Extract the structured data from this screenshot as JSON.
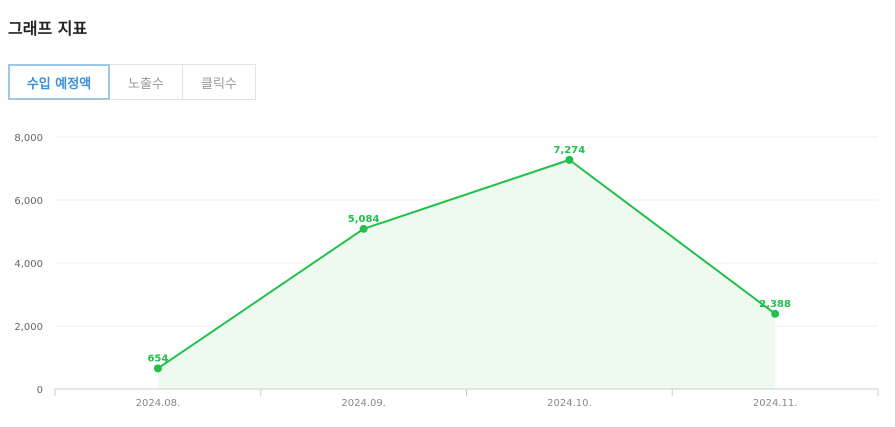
{
  "section": {
    "title": "그래프 지표"
  },
  "tabs": [
    {
      "label": "수입 예정액",
      "active": true
    },
    {
      "label": "노출수",
      "active": false
    },
    {
      "label": "클릭수",
      "active": false
    }
  ],
  "colors": {
    "series_line": "#22c04b",
    "series_fill": "#eefaf0",
    "tab_active_text": "#3a8fd6",
    "tab_active_border": "#9ec7ea"
  },
  "chart_data": {
    "type": "area",
    "title": "",
    "xlabel": "",
    "ylabel": "",
    "categories": [
      "2024.08.",
      "2024.09.",
      "2024.10.",
      "2024.11."
    ],
    "series": [
      {
        "values": [
          654,
          5084,
          7274,
          2388
        ],
        "value_labels": [
          "654",
          "5,084",
          "7,274",
          "2,388"
        ]
      }
    ],
    "ylim": [
      0,
      8000
    ],
    "y_ticks": [
      0,
      2000,
      4000,
      6000,
      8000
    ],
    "y_tick_labels": [
      "0",
      "2,000",
      "4,000",
      "6,000",
      "8,000"
    ],
    "grid": true,
    "legend": "none"
  }
}
